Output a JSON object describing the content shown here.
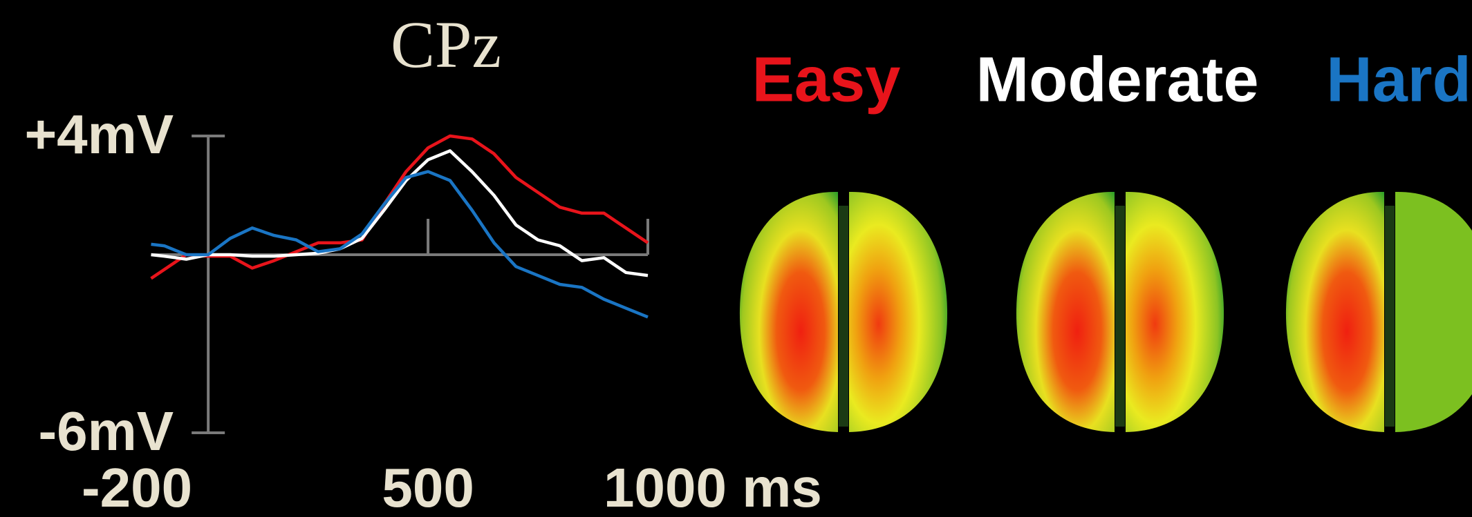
{
  "chart_data": {
    "type": "line",
    "title": "CPz",
    "x": [
      -130,
      -100,
      -50,
      0,
      50,
      100,
      150,
      200,
      250,
      300,
      350,
      400,
      450,
      500,
      550,
      600,
      650,
      700,
      750,
      800,
      850,
      900,
      950,
      1000
    ],
    "series": [
      {
        "name": "Easy",
        "color": "#e8141b",
        "values": [
          -0.8,
          -0.5,
          0,
          -0.05,
          -0.05,
          -0.45,
          -0.2,
          0.1,
          0.4,
          0.4,
          0.5,
          1.7,
          2.8,
          3.6,
          4.0,
          3.9,
          3.4,
          2.6,
          2.1,
          1.6,
          1.4,
          1.4,
          0.9,
          0.4
        ]
      },
      {
        "name": "Moderate",
        "color": "#ffffff",
        "values": [
          0,
          -0.05,
          -0.15,
          0,
          0,
          -0.05,
          -0.05,
          0,
          0.05,
          0.2,
          0.55,
          1.5,
          2.5,
          3.2,
          3.5,
          2.8,
          2.0,
          1.0,
          0.5,
          0.3,
          -0.2,
          -0.1,
          -0.6,
          -0.7
        ]
      },
      {
        "name": "Hard",
        "color": "#1a75c4",
        "values": [
          0.35,
          0.3,
          0,
          0,
          0.55,
          0.9,
          0.65,
          0.5,
          0.1,
          0.2,
          0.7,
          1.7,
          2.6,
          2.8,
          2.5,
          1.5,
          0.4,
          -0.4,
          -0.7,
          -1.0,
          -1.1,
          -1.5,
          -1.8,
          -2.1
        ]
      }
    ],
    "xlim": [
      -200,
      1000
    ],
    "xticks": [
      -200,
      500,
      {
        "value": 1000,
        "label": "1000 ms"
      }
    ],
    "ylim": [
      -6,
      4
    ],
    "yticks": [
      {
        "value": -6,
        "label": "-6mV"
      },
      {
        "value": 4,
        "label": "+4mV"
      }
    ]
  }
}
